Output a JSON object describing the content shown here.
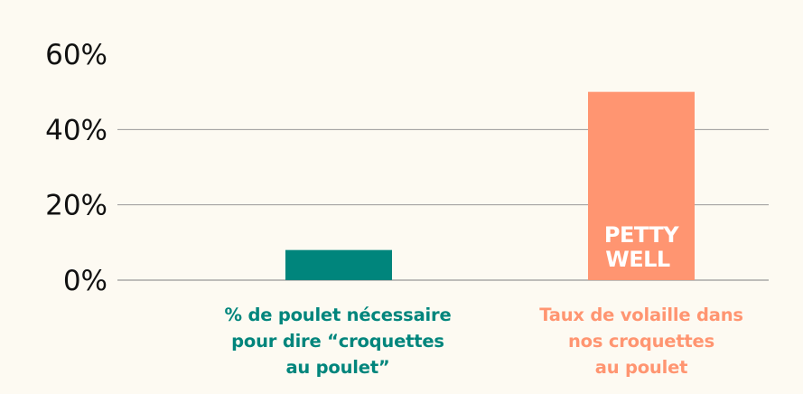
{
  "chart_data": {
    "type": "bar",
    "categories": [
      [
        "% de poulet nécessaire",
        "pour dire “croquettes",
        "au poulet”"
      ],
      [
        "Taux de volaille dans",
        "nos croquettes",
        "au poulet"
      ]
    ],
    "values": [
      8,
      50
    ],
    "bar_colors": [
      "#00857c",
      "#ff9571"
    ],
    "ylim": [
      0,
      60
    ],
    "yticks": [
      "0%",
      "20%",
      "40%",
      "60%"
    ],
    "ytick_values": [
      0,
      20,
      40,
      60
    ],
    "grid": true,
    "title": "",
    "xlabel": "",
    "ylabel": ""
  },
  "brand": {
    "line1": "PETTY",
    "line2": "WELL"
  },
  "colors": {
    "background": "#fdfaf2",
    "grid": "#999999",
    "text": "#111111"
  }
}
